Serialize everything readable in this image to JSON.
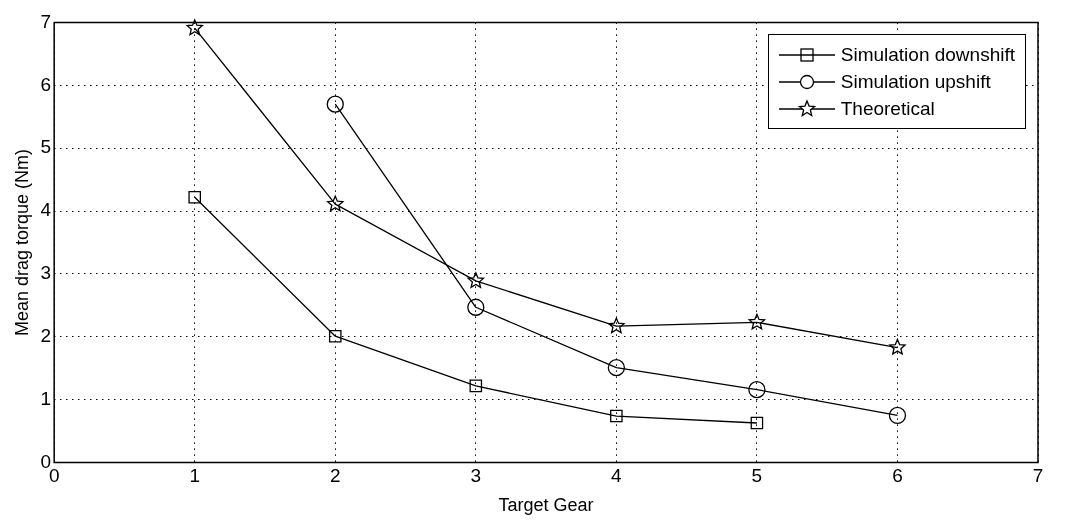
{
  "chart_data": {
    "type": "line",
    "xlabel": "Target Gear",
    "ylabel": "Mean drag torque (Nm)",
    "x": [
      1,
      2,
      3,
      4,
      5,
      6
    ],
    "series": [
      {
        "name": "Simulation downshift",
        "color": "#000000",
        "marker": "square",
        "values": [
          4.22,
          2.01,
          1.22,
          0.74,
          0.63,
          null
        ]
      },
      {
        "name": "Simulation upshift",
        "color": "#000000",
        "marker": "circle",
        "values": [
          null,
          5.7,
          2.47,
          1.51,
          1.16,
          0.75
        ]
      },
      {
        "name": "Theoretical",
        "color": "#000000",
        "marker": "star",
        "values": [
          6.91,
          4.11,
          2.89,
          2.17,
          2.23,
          1.83
        ]
      }
    ],
    "xlim": [
      0,
      7
    ],
    "xticks": [
      0,
      1,
      2,
      3,
      4,
      5,
      6,
      7
    ],
    "ylim": [
      0,
      7
    ],
    "yticks": [
      0,
      1,
      2,
      3,
      4,
      5,
      6,
      7
    ],
    "grid": true,
    "legend": "top right",
    "line_style": "solid"
  }
}
